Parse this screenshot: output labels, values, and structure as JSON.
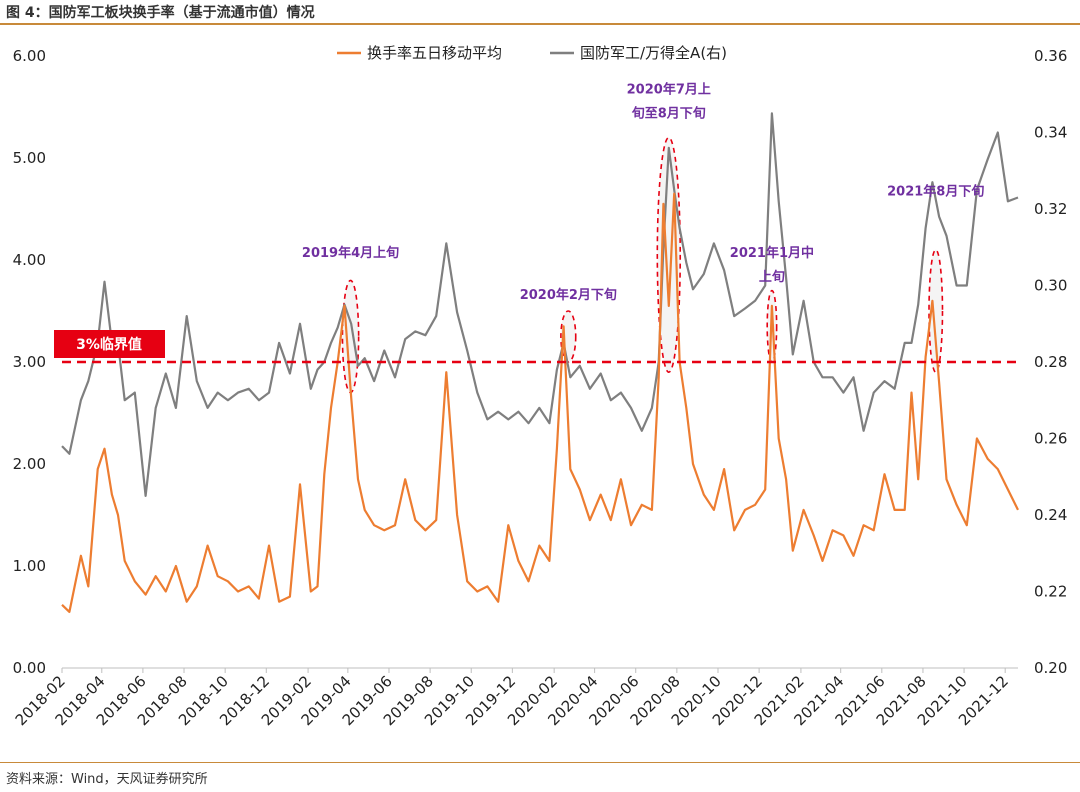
{
  "figure": {
    "title": "图 4：国防军工板块换手率（基于流通市值）情况",
    "source": "资料来源：Wind，天风证券研究所"
  },
  "chart_data": {
    "type": "line",
    "title": "",
    "left_axis": {
      "ylim": [
        0,
        6
      ],
      "ticks": [
        "0.00",
        "1.00",
        "2.00",
        "3.00",
        "4.00",
        "5.00",
        "6.00"
      ]
    },
    "right_axis": {
      "ylim": [
        0.2,
        0.36
      ],
      "ticks": [
        "0.20",
        "0.22",
        "0.24",
        "0.26",
        "0.28",
        "0.30",
        "0.32",
        "0.34",
        "0.36"
      ]
    },
    "x_range": [
      "2018-02-01",
      "2021-12-20"
    ],
    "x_tick_labels": [
      "2018-02",
      "2018-04",
      "2018-06",
      "2018-08",
      "2018-10",
      "2018-12",
      "2019-02",
      "2019-04",
      "2019-06",
      "2019-08",
      "2019-10",
      "2019-12",
      "2020-02",
      "2020-04",
      "2020-06",
      "2020-08",
      "2020-10",
      "2020-12",
      "2021-02",
      "2021-04",
      "2021-06",
      "2021-08",
      "2021-10",
      "2021-12"
    ],
    "legend_position": "top-center",
    "grid": false,
    "colors": {
      "turnover": "#ed7d31",
      "ratio": "#7f7f7f",
      "threshold": "#e60012",
      "annotation": "#7030a0"
    },
    "series": [
      {
        "name": "换手率五日移动平均",
        "axis": "left",
        "x": [
          "2018-02-01",
          "2018-02-12",
          "2018-03-01",
          "2018-03-12",
          "2018-03-26",
          "2018-04-05",
          "2018-04-16",
          "2018-04-25",
          "2018-05-05",
          "2018-05-20",
          "2018-06-05",
          "2018-06-20",
          "2018-07-05",
          "2018-07-20",
          "2018-08-05",
          "2018-08-20",
          "2018-09-05",
          "2018-09-20",
          "2018-10-05",
          "2018-10-20",
          "2018-11-05",
          "2018-11-20",
          "2018-12-05",
          "2018-12-20",
          "2019-01-05",
          "2019-01-20",
          "2019-02-05",
          "2019-02-15",
          "2019-02-25",
          "2019-03-07",
          "2019-03-17",
          "2019-03-27",
          "2019-04-06",
          "2019-04-16",
          "2019-04-26",
          "2019-05-10",
          "2019-05-25",
          "2019-06-10",
          "2019-06-25",
          "2019-07-10",
          "2019-07-25",
          "2019-08-10",
          "2019-08-25",
          "2019-09-10",
          "2019-09-25",
          "2019-10-10",
          "2019-10-25",
          "2019-11-10",
          "2019-11-25",
          "2019-12-10",
          "2019-12-25",
          "2020-01-10",
          "2020-01-25",
          "2020-02-05",
          "2020-02-15",
          "2020-02-25",
          "2020-03-10",
          "2020-03-25",
          "2020-04-10",
          "2020-04-25",
          "2020-05-10",
          "2020-05-25",
          "2020-06-10",
          "2020-06-25",
          "2020-07-05",
          "2020-07-12",
          "2020-07-20",
          "2020-07-28",
          "2020-08-05",
          "2020-08-15",
          "2020-08-25",
          "2020-09-10",
          "2020-09-25",
          "2020-10-10",
          "2020-10-25",
          "2020-11-10",
          "2020-11-25",
          "2020-12-10",
          "2020-12-20",
          "2020-12-30",
          "2021-01-10",
          "2021-01-20",
          "2021-02-05",
          "2021-02-20",
          "2021-03-05",
          "2021-03-20",
          "2021-04-05",
          "2021-04-20",
          "2021-05-05",
          "2021-05-20",
          "2021-06-05",
          "2021-06-20",
          "2021-07-05",
          "2021-07-15",
          "2021-07-25",
          "2021-08-05",
          "2021-08-15",
          "2021-08-25",
          "2021-09-05",
          "2021-09-20",
          "2021-10-05",
          "2021-10-20",
          "2021-11-05",
          "2021-11-20",
          "2021-12-05",
          "2021-12-20"
        ],
        "values": [
          0.62,
          0.55,
          1.1,
          0.8,
          1.95,
          2.15,
          1.7,
          1.5,
          1.05,
          0.85,
          0.72,
          0.9,
          0.75,
          1.0,
          0.65,
          0.8,
          1.2,
          0.9,
          0.85,
          0.75,
          0.8,
          0.68,
          1.2,
          0.65,
          0.7,
          1.8,
          0.75,
          0.8,
          1.9,
          2.55,
          3.0,
          3.55,
          2.65,
          1.85,
          1.55,
          1.4,
          1.35,
          1.4,
          1.85,
          1.45,
          1.35,
          1.45,
          2.9,
          1.5,
          0.85,
          0.75,
          0.8,
          0.65,
          1.4,
          1.05,
          0.85,
          1.2,
          1.05,
          2.15,
          3.35,
          1.95,
          1.75,
          1.45,
          1.7,
          1.45,
          1.85,
          1.4,
          1.6,
          1.55,
          2.85,
          4.55,
          3.55,
          4.65,
          3.0,
          2.55,
          2.0,
          1.7,
          1.55,
          1.95,
          1.35,
          1.55,
          1.6,
          1.75,
          3.55,
          2.25,
          1.85,
          1.15,
          1.55,
          1.3,
          1.05,
          1.35,
          1.3,
          1.1,
          1.4,
          1.35,
          1.9,
          1.55,
          1.55,
          2.7,
          1.85,
          3.05,
          3.6,
          2.8,
          1.85,
          1.6,
          1.4,
          2.25,
          2.05,
          1.95,
          1.75,
          1.55
        ]
      },
      {
        "name": "国防军工/万得全A(右)",
        "axis": "right",
        "x": [
          "2018-02-01",
          "2018-02-12",
          "2018-03-01",
          "2018-03-12",
          "2018-03-26",
          "2018-04-05",
          "2018-04-16",
          "2018-04-25",
          "2018-05-05",
          "2018-05-20",
          "2018-06-05",
          "2018-06-20",
          "2018-07-05",
          "2018-07-20",
          "2018-08-05",
          "2018-08-20",
          "2018-09-05",
          "2018-09-20",
          "2018-10-05",
          "2018-10-20",
          "2018-11-05",
          "2018-11-20",
          "2018-12-05",
          "2018-12-20",
          "2019-01-05",
          "2019-01-20",
          "2019-02-05",
          "2019-02-15",
          "2019-02-25",
          "2019-03-07",
          "2019-03-17",
          "2019-03-27",
          "2019-04-06",
          "2019-04-16",
          "2019-04-26",
          "2019-05-10",
          "2019-05-25",
          "2019-06-10",
          "2019-06-25",
          "2019-07-10",
          "2019-07-25",
          "2019-08-10",
          "2019-08-25",
          "2019-09-10",
          "2019-09-25",
          "2019-10-10",
          "2019-10-25",
          "2019-11-10",
          "2019-11-25",
          "2019-12-10",
          "2019-12-25",
          "2020-01-10",
          "2020-01-25",
          "2020-02-05",
          "2020-02-15",
          "2020-02-25",
          "2020-03-10",
          "2020-03-25",
          "2020-04-10",
          "2020-04-25",
          "2020-05-10",
          "2020-05-25",
          "2020-06-10",
          "2020-06-25",
          "2020-07-05",
          "2020-07-12",
          "2020-07-20",
          "2020-07-28",
          "2020-08-05",
          "2020-08-15",
          "2020-08-25",
          "2020-09-10",
          "2020-09-25",
          "2020-10-10",
          "2020-10-25",
          "2020-11-10",
          "2020-11-25",
          "2020-12-10",
          "2020-12-20",
          "2020-12-30",
          "2021-01-10",
          "2021-01-20",
          "2021-02-05",
          "2021-02-20",
          "2021-03-05",
          "2021-03-20",
          "2021-04-05",
          "2021-04-20",
          "2021-05-05",
          "2021-05-20",
          "2021-06-05",
          "2021-06-20",
          "2021-07-05",
          "2021-07-15",
          "2021-07-25",
          "2021-08-05",
          "2021-08-15",
          "2021-08-25",
          "2021-09-05",
          "2021-09-20",
          "2021-10-05",
          "2021-10-20",
          "2021-11-05",
          "2021-11-20",
          "2021-12-05",
          "2021-12-20"
        ],
        "values": [
          0.258,
          0.256,
          0.27,
          0.275,
          0.285,
          0.301,
          0.285,
          0.285,
          0.27,
          0.272,
          0.245,
          0.268,
          0.277,
          0.268,
          0.292,
          0.275,
          0.268,
          0.272,
          0.27,
          0.272,
          0.273,
          0.27,
          0.272,
          0.285,
          0.277,
          0.29,
          0.273,
          0.278,
          0.28,
          0.285,
          0.289,
          0.295,
          0.29,
          0.279,
          0.281,
          0.275,
          0.283,
          0.276,
          0.286,
          0.288,
          0.287,
          0.292,
          0.311,
          0.293,
          0.283,
          0.272,
          0.265,
          0.267,
          0.265,
          0.267,
          0.264,
          0.268,
          0.264,
          0.278,
          0.285,
          0.276,
          0.279,
          0.273,
          0.277,
          0.27,
          0.272,
          0.268,
          0.262,
          0.268,
          0.28,
          0.31,
          0.336,
          0.325,
          0.315,
          0.306,
          0.299,
          0.303,
          0.311,
          0.304,
          0.292,
          0.294,
          0.296,
          0.3,
          0.345,
          0.322,
          0.302,
          0.282,
          0.296,
          0.28,
          0.276,
          0.276,
          0.272,
          0.276,
          0.262,
          0.272,
          0.275,
          0.273,
          0.285,
          0.285,
          0.295,
          0.315,
          0.327,
          0.318,
          0.313,
          0.3,
          0.3,
          0.325,
          0.333,
          0.34,
          0.322,
          0.323
        ]
      }
    ],
    "threshold": {
      "value": 3.0,
      "axis": "left",
      "label": "3%临界值"
    },
    "annotations": [
      {
        "date": "2019-04-05",
        "center": 3.25,
        "rx_days": 12,
        "half_height": 0.55,
        "lines": [
          "2019年4月上旬"
        ],
        "label_value": 4.03
      },
      {
        "date": "2020-02-22",
        "center": 3.25,
        "rx_days": 11,
        "half_height": 0.25,
        "lines": [
          "2020年2月下旬"
        ],
        "label_value": 3.62
      },
      {
        "date": "2020-07-20",
        "center": 4.05,
        "rx_days": 17,
        "half_height": 1.15,
        "lines": [
          "2020年7月上",
          "旬至8月下旬"
        ],
        "label_value": 5.63
      },
      {
        "date": "2020-12-20",
        "center": 3.35,
        "rx_days": 7,
        "half_height": 0.35,
        "lines": [
          "2021年1月中",
          "上旬"
        ],
        "label_value": 4.03
      },
      {
        "date": "2021-08-20",
        "center": 3.5,
        "rx_days": 10,
        "half_height": 0.6,
        "lines": [
          "2021年8月下旬"
        ],
        "label_value": 4.63
      }
    ]
  }
}
